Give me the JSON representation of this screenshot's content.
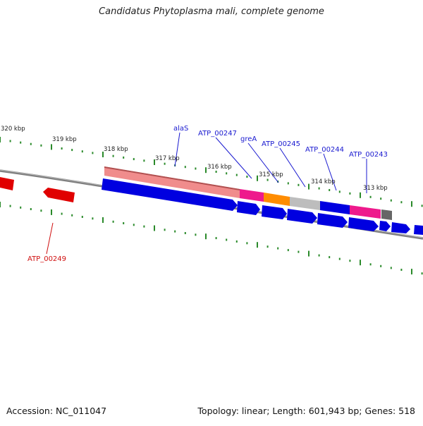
{
  "title": "Candidatus Phytoplasma mali, complete genome",
  "footer": {
    "accession": "Accession: NC_011047",
    "summary": "Topology: linear; Length: 601,943 bp; Genes: 518"
  },
  "ticks": [
    {
      "label": "320 kbp"
    },
    {
      "label": "319 kbp"
    },
    {
      "label": "318 kbp"
    },
    {
      "label": "317 kbp"
    },
    {
      "label": "316 kbp"
    },
    {
      "label": "315 kbp"
    },
    {
      "label": "314 kbp"
    },
    {
      "label": "313 kbp"
    }
  ],
  "gene_labels": [
    {
      "name": "alaS",
      "color": "#1a1ad0"
    },
    {
      "name": "ATP_00247",
      "color": "#1a1ad0"
    },
    {
      "name": "greA",
      "color": "#1a1ad0"
    },
    {
      "name": "ATP_00245",
      "color": "#1a1ad0"
    },
    {
      "name": "ATP_00244",
      "color": "#1a1ad0"
    },
    {
      "name": "ATP_00243",
      "color": "#1a1ad0"
    },
    {
      "name": "ATP_00249",
      "color": "#d01010"
    }
  ],
  "colors": {
    "backbone": "#808080",
    "tick": "#2a8a2a",
    "cds_forward": "#0000e0",
    "cds_reverse": "#e00000",
    "feature_salmon": "#f08c8c",
    "feature_pink": "#ee1a8c",
    "feature_orange": "#ff8c00",
    "feature_gray": "#bdbdbd",
    "feature_dark": "#666666"
  }
}
